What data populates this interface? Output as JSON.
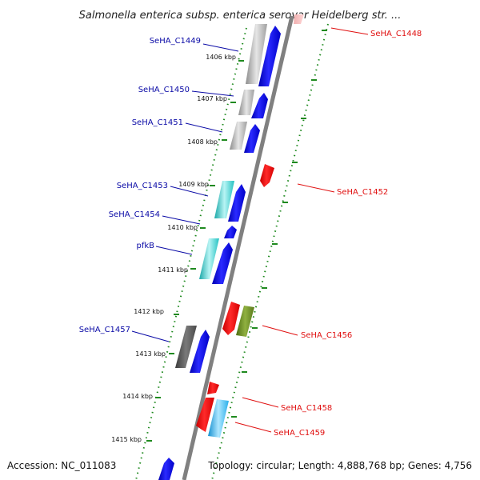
{
  "title": "Salmonella enterica subsp. enterica serovar Heidelberg str. ...",
  "accession_label": "Accession: NC_011083",
  "topology_label": "Topology: circular; Length: 4,888,768 bp; Genes: 4,756",
  "colors": {
    "forward_label": "#0a0aa6",
    "reverse_label": "#e01010",
    "tick": "#1f8a1f",
    "backbone": "#808080"
  },
  "scale_ticks": [
    "1406 kbp",
    "1407 kbp",
    "1408 kbp",
    "1409 kbp",
    "1410 kbp",
    "1411 kbp",
    "1412 kbp",
    "1413 kbp",
    "1414 kbp",
    "1415 kbp"
  ],
  "forward_genes": [
    {
      "name": "SeHA_C1449"
    },
    {
      "name": "SeHA_C1450"
    },
    {
      "name": "SeHA_C1451"
    },
    {
      "name": "SeHA_C1453"
    },
    {
      "name": "SeHA_C1454"
    },
    {
      "name": "pfkB"
    },
    {
      "name": "SeHA_C1457"
    }
  ],
  "reverse_genes": [
    {
      "name": "SeHA_C1448"
    },
    {
      "name": "SeHA_C1452"
    },
    {
      "name": "SeHA_C1456"
    },
    {
      "name": "SeHA_C1458"
    },
    {
      "name": "SeHA_C1459"
    }
  ]
}
